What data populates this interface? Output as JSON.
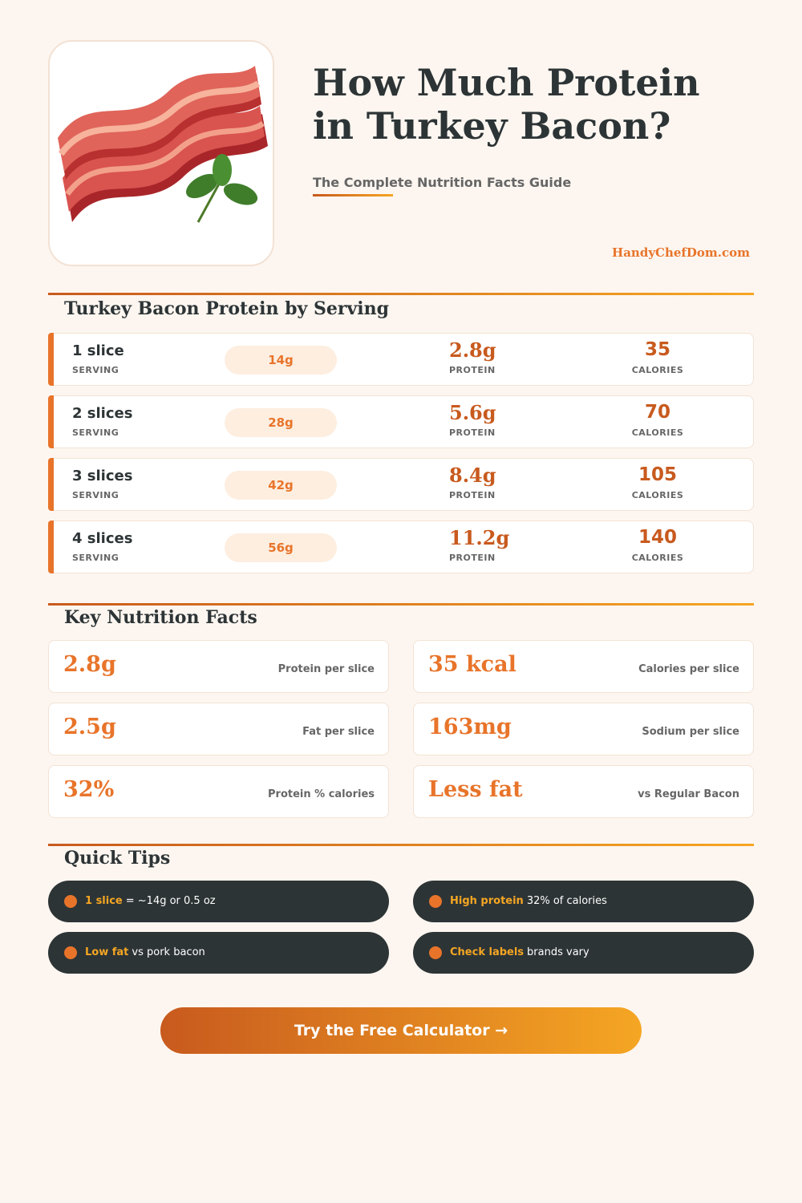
{
  "header": {
    "title": [
      "How Much Protein",
      "in Turkey Bacon?"
    ],
    "subtitle": "The Complete Nutrition Facts Guide",
    "site": "HandyChefDom.com"
  },
  "servings": {
    "heading": "Turkey Bacon Protein by Serving",
    "rows": [
      {
        "serving": "1 slice",
        "serving_label": "SERVING",
        "weight": "14g",
        "protein": "2.8g",
        "protein_label": "PROTEIN",
        "calories": "35",
        "calories_label": "CALORIES"
      },
      {
        "serving": "2 slices",
        "serving_label": "SERVING",
        "weight": "28g",
        "protein": "5.6g",
        "protein_label": "PROTEIN",
        "calories": "70",
        "calories_label": "CALORIES"
      },
      {
        "serving": "3 slices",
        "serving_label": "SERVING",
        "weight": "42g",
        "protein": "8.4g",
        "protein_label": "PROTEIN",
        "calories": "105",
        "calories_label": "CALORIES"
      },
      {
        "serving": "4 slices",
        "serving_label": "SERVING",
        "weight": "56g",
        "protein": "11.2g",
        "protein_label": "PROTEIN",
        "calories": "140",
        "calories_label": "CALORIES"
      }
    ]
  },
  "facts": {
    "heading": "Key Nutrition Facts",
    "cards": [
      {
        "value": "2.8g",
        "label": "Protein per slice"
      },
      {
        "value": "35 kcal",
        "label": "Calories per slice"
      },
      {
        "value": "2.5g",
        "label": "Fat per slice"
      },
      {
        "value": "163mg",
        "label": "Sodium per slice"
      },
      {
        "value": "32%",
        "label": "Protein % calories"
      },
      {
        "value": "Less fat",
        "label": "vs Regular Bacon"
      }
    ]
  },
  "tips": {
    "heading": "Quick Tips",
    "items": [
      {
        "highlight": "1 slice",
        "text": "= ~14g or 0.5 oz"
      },
      {
        "highlight": "High protein",
        "text": "32% of calories"
      },
      {
        "highlight": "Low fat",
        "text": "vs pork bacon"
      },
      {
        "highlight": "Check labels",
        "text": "brands vary"
      }
    ]
  },
  "cta": {
    "label": "Try the Free Calculator →"
  }
}
